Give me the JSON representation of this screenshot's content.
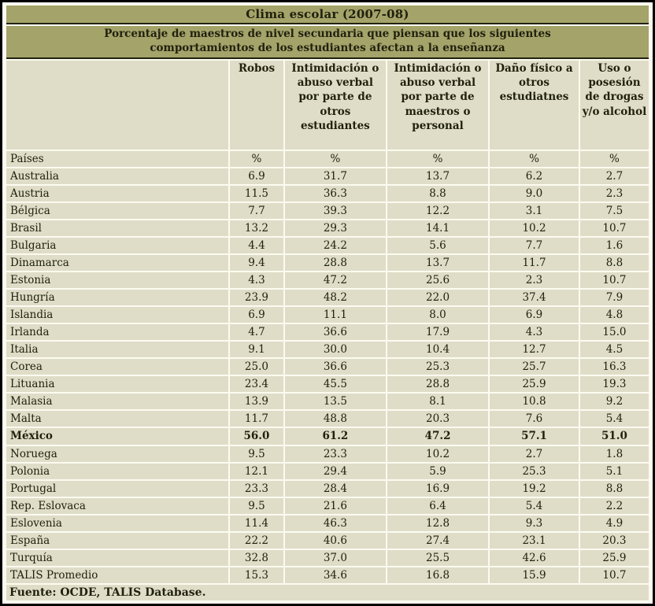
{
  "colors": {
    "header_olive": "#a4a369",
    "cell_beige": "#dfddc7",
    "gap_cream": "#fcfbf1",
    "outer_border": "#000000",
    "text": "#21210f"
  },
  "chart_data": {
    "type": "table",
    "title": "Clima escolar (2007-08)",
    "subtitle": "Porcentaje de maestros de nivel secundaria que piensan que los siguientes comportamientos de los estudiantes afectan a la enseñanza",
    "row_header": "Países",
    "unit": "%",
    "columns": [
      "Robos",
      "Intimidación o abuso verbal por parte de otros estudiantes",
      "Intimidación o abuso verbal por parte de maestros o personal",
      "Daño físico a otros estudiatnes",
      "Uso o posesión de drogas y/o alcohol"
    ],
    "rows": [
      {
        "country": "Australia",
        "values": [
          "6.9",
          "31.7",
          "13.7",
          "6.2",
          "2.7"
        ],
        "bold": false
      },
      {
        "country": "Austria",
        "values": [
          "11.5",
          "36.3",
          "8.8",
          "9.0",
          "2.3"
        ],
        "bold": false
      },
      {
        "country": "Bélgica",
        "values": [
          "7.7",
          "39.3",
          "12.2",
          "3.1",
          "7.5"
        ],
        "bold": false
      },
      {
        "country": "Brasil",
        "values": [
          "13.2",
          "29.3",
          "14.1",
          "10.2",
          "10.7"
        ],
        "bold": false
      },
      {
        "country": "Bulgaria",
        "values": [
          "4.4",
          "24.2",
          "5.6",
          "7.7",
          "1.6"
        ],
        "bold": false
      },
      {
        "country": "Dinamarca",
        "values": [
          "9.4",
          "28.8",
          "13.7",
          "11.7",
          "8.8"
        ],
        "bold": false
      },
      {
        "country": "Estonia",
        "values": [
          "4.3",
          "47.2",
          "25.6",
          "2.3",
          "10.7"
        ],
        "bold": false
      },
      {
        "country": "Hungría",
        "values": [
          "23.9",
          "48.2",
          "22.0",
          "37.4",
          "7.9"
        ],
        "bold": false
      },
      {
        "country": "Islandia",
        "values": [
          "6.9",
          "11.1",
          "8.0",
          "6.9",
          "4.8"
        ],
        "bold": false
      },
      {
        "country": "Irlanda",
        "values": [
          "4.7",
          "36.6",
          "17.9",
          "4.3",
          "15.0"
        ],
        "bold": false
      },
      {
        "country": "Italia",
        "values": [
          "9.1",
          "30.0",
          "10.4",
          "12.7",
          "4.5"
        ],
        "bold": false
      },
      {
        "country": "Corea",
        "values": [
          "25.0",
          "36.6",
          "25.3",
          "25.7",
          "16.3"
        ],
        "bold": false
      },
      {
        "country": "Lituania",
        "values": [
          "23.4",
          "45.5",
          "28.8",
          "25.9",
          "19.3"
        ],
        "bold": false
      },
      {
        "country": "Malasia",
        "values": [
          "13.9",
          "13.5",
          "8.1",
          "10.8",
          "9.2"
        ],
        "bold": false
      },
      {
        "country": "Malta",
        "values": [
          "11.7",
          "48.8",
          "20.3",
          "7.6",
          "5.4"
        ],
        "bold": false
      },
      {
        "country": "México",
        "values": [
          "56.0",
          "61.2",
          "47.2",
          "57.1",
          "51.0"
        ],
        "bold": true
      },
      {
        "country": "Noruega",
        "values": [
          "9.5",
          "23.3",
          "10.2",
          "2.7",
          "1.8"
        ],
        "bold": false
      },
      {
        "country": "Polonia",
        "values": [
          "12.1",
          "29.4",
          "5.9",
          "25.3",
          "5.1"
        ],
        "bold": false
      },
      {
        "country": "Portugal",
        "values": [
          "23.3",
          "28.4",
          "16.9",
          "19.2",
          "8.8"
        ],
        "bold": false
      },
      {
        "country": "Rep. Eslovaca",
        "values": [
          "9.5",
          "21.6",
          "6.4",
          "5.4",
          "2.2"
        ],
        "bold": false
      },
      {
        "country": "Eslovenia",
        "values": [
          "11.4",
          "46.3",
          "12.8",
          "9.3",
          "4.9"
        ],
        "bold": false
      },
      {
        "country": "España",
        "values": [
          "22.2",
          "40.6",
          "27.4",
          "23.1",
          "20.3"
        ],
        "bold": false
      },
      {
        "country": "Turquía",
        "values": [
          "32.8",
          "37.0",
          "25.5",
          "42.6",
          "25.9"
        ],
        "bold": false
      },
      {
        "country": "TALIS Promedio",
        "values": [
          "15.3",
          "34.6",
          "16.8",
          "15.9",
          "10.7"
        ],
        "bold": false
      }
    ],
    "source": "Fuente: OCDE, TALIS Database."
  }
}
